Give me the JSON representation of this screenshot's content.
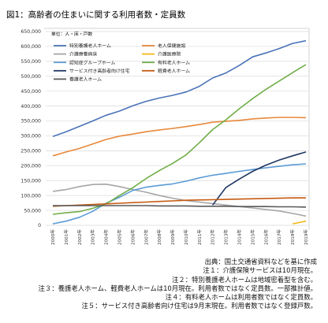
{
  "chart_data": {
    "type": "line",
    "title": "図1：高齢者の住まいに関する利用者数・定員数",
    "unit": "単位：人・床・戸数",
    "xlabel": "",
    "ylabel": "",
    "ylim": [
      0,
      650000
    ],
    "yticks": [
      "0",
      "50,000",
      "100,000",
      "150,000",
      "200,000",
      "250,000",
      "300,000",
      "350,000",
      "400,000",
      "450,000",
      "500,000",
      "550,000",
      "600,000",
      "650,000"
    ],
    "categories": [
      "2000年",
      "2001年",
      "2002年",
      "2003年",
      "2004年",
      "2005年",
      "2006年",
      "2007年",
      "2008年",
      "2009年",
      "2010年",
      "2011年",
      "2012年",
      "2013年",
      "2014年",
      "2015年",
      "2016年",
      "2017年",
      "2018年",
      "2019年"
    ],
    "grid": true,
    "legend_position": "top-left",
    "series": [
      {
        "name": "特別養護老人ホーム",
        "color": "#4a73b8",
        "values": [
          298000,
          314000,
          332000,
          350000,
          369000,
          383000,
          401000,
          416000,
          427000,
          436000,
          447000,
          466000,
          494000,
          511000,
          536000,
          565000,
          578000,
          593000,
          610000,
          619000
        ]
      },
      {
        "name": "老人保健施設",
        "color": "#e8883a",
        "values": [
          233000,
          246000,
          258000,
          273000,
          288000,
          299000,
          306000,
          314000,
          320000,
          325000,
          331000,
          338000,
          346000,
          349000,
          352000,
          357000,
          360000,
          362000,
          362000,
          361000
        ]
      },
      {
        "name": "介護療養病床",
        "color": "#a6a6a6",
        "values": [
          114000,
          120000,
          130000,
          137000,
          138000,
          130000,
          120000,
          111000,
          100000,
          91000,
          83000,
          78000,
          73000,
          68000,
          63000,
          58000,
          53000,
          48000,
          40000,
          31000
        ]
      },
      {
        "name": "介護医療院",
        "color": "#f2b817",
        "values": [
          null,
          null,
          null,
          null,
          null,
          null,
          null,
          null,
          null,
          null,
          null,
          null,
          null,
          null,
          null,
          null,
          null,
          null,
          5000,
          14000
        ]
      },
      {
        "name": "認知症グループホーム",
        "color": "#5b9bd5",
        "values": [
          5000,
          14000,
          27000,
          47000,
          74000,
          94000,
          117000,
          128000,
          134000,
          139000,
          148000,
          159000,
          168000,
          174000,
          181000,
          187000,
          193000,
          198000,
          203000,
          206000
        ]
      },
      {
        "name": "有料老人ホーム",
        "color": "#70ad47",
        "values": [
          37000,
          42000,
          46000,
          57000,
          72000,
          100000,
          126000,
          157000,
          184000,
          208000,
          236000,
          277000,
          321000,
          354000,
          391000,
          425000,
          456000,
          484000,
          512000,
          539000
        ]
      },
      {
        "name": "サービス付き高齢者向け住宅",
        "color": "#1f3864",
        "values": [
          null,
          null,
          null,
          null,
          null,
          null,
          null,
          null,
          null,
          null,
          null,
          null,
          68000,
          127000,
          155000,
          181000,
          202000,
          219000,
          233000,
          246000
        ]
      },
      {
        "name": "軽費老人ホーム",
        "color": "#c55a11",
        "values": [
          64000,
          66000,
          68000,
          70000,
          72000,
          74000,
          76000,
          78000,
          80000,
          82000,
          84000,
          85000,
          86000,
          87000,
          88000,
          89000,
          90000,
          91000,
          92000,
          92000
        ]
      },
      {
        "name": "養護老人ホーム",
        "color": "#595959",
        "values": [
          66000,
          66000,
          66000,
          66000,
          66000,
          66000,
          66000,
          66000,
          65000,
          65000,
          65000,
          64000,
          64000,
          64000,
          63000,
          63000,
          63000,
          62000,
          62000,
          61000
        ]
      }
    ]
  },
  "notes": [
    "出典：国土交通省資料などを基に作成",
    "注１：介護保険サービスは10月現在。",
    "注２：特別養護老人ホームは地域密着型を含む。",
    "注３：養護老人ホーム、軽費老人ホームは10月現在。利用者数ではなく定員数。一部推計値。",
    "注４：有料老人ホームは利用者数ではなく定員数。",
    "注５：サービス付き高齢者向け住宅は9月末現在。利用者数ではなく登録戸数。"
  ]
}
